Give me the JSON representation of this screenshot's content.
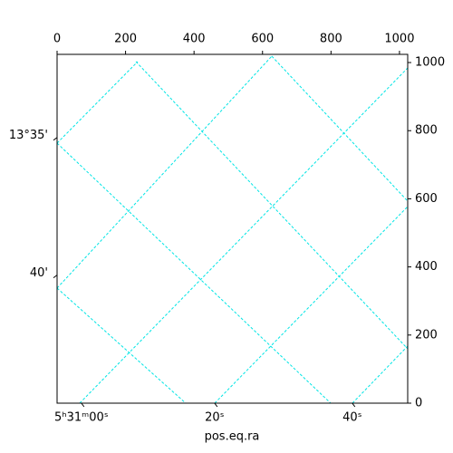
{
  "chart_data": {
    "type": "image",
    "xlim": [
      0,
      1024
    ],
    "ylim": [
      0,
      1024
    ],
    "xticks": [
      0,
      200,
      400,
      600,
      800,
      1000
    ],
    "yticks": [
      0,
      200,
      400,
      600,
      800,
      1000
    ],
    "ra_ticks": [
      {
        "value": 71,
        "label": "5ʰ31ᵐ00ˢ"
      },
      {
        "value": 460,
        "label": "20ˢ"
      },
      {
        "value": 862,
        "label": "40ˢ"
      }
    ],
    "dec_ticks": [
      {
        "value": 780,
        "label": "13°35'"
      },
      {
        "value": 376,
        "label": "40'"
      }
    ],
    "xlabel": "pos.eq.ra",
    "grid_color": "#00e5e5"
  }
}
